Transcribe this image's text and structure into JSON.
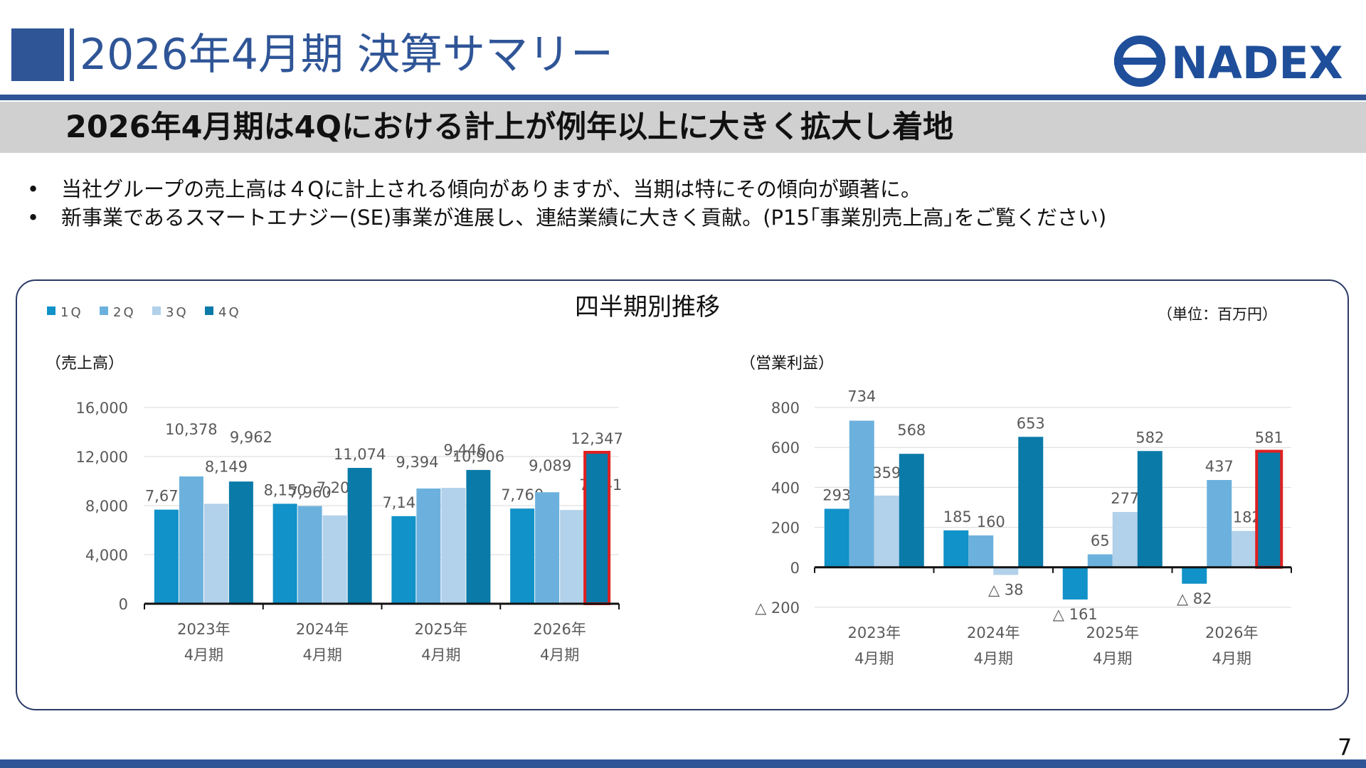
{
  "header": {
    "title": "2026年4月期 決算サマリー",
    "logo_text": "NADEX",
    "subheading": "2026年4月期は4Qにおける計上が例年以上に大きく拡大し着地"
  },
  "bullets": [
    "当社グループの売上高は４Qに計上される傾向がありますが、当期は特にその傾向が顕著に。",
    "新事業であるスマートエナジー(SE)事業が進展し、連結業績に大きく貢献。(P15｢事業別売上高｣をご覧ください)"
  ],
  "bullet_marker": "•",
  "panel": {
    "title": "四半期別推移",
    "unit": "（単位：百万円）"
  },
  "colors": {
    "brand": "#2f5597",
    "q1": "#1192c8",
    "q2": "#6cb1dd",
    "q3": "#b2d1ea",
    "q4": "#0a7aa8",
    "highlight": "#e02020"
  },
  "chart_data": [
    {
      "type": "bar",
      "title": "（売上高）",
      "categories": [
        [
          "2023年",
          "4月期"
        ],
        [
          "2024年",
          "4月期"
        ],
        [
          "2025年",
          "4月期"
        ],
        [
          "2026年",
          "4月期"
        ]
      ],
      "series": [
        {
          "name": "1Q",
          "values": [
            7672,
            8150,
            7142,
            7760
          ]
        },
        {
          "name": "2Q",
          "values": [
            10378,
            7960,
            9394,
            9089
          ]
        },
        {
          "name": "3Q",
          "values": [
            8149,
            7202,
            9446,
            7641
          ]
        },
        {
          "name": "4Q",
          "values": [
            9962,
            11074,
            10906,
            12347
          ]
        }
      ],
      "labels": [
        [
          "7,672",
          "10,378",
          "8,149",
          "9,962"
        ],
        [
          "8,150",
          "7,960",
          "7,202",
          "11,074"
        ],
        [
          "7,142",
          "9,394",
          "9,446",
          "10,906"
        ],
        [
          "7,760",
          "9,089",
          "7,641",
          "12,347"
        ]
      ],
      "yticks": [
        0,
        4000,
        8000,
        12000,
        16000
      ],
      "ytick_labels": [
        "0",
        "4,000",
        "8,000",
        "12,000",
        "16,000"
      ],
      "ylim": [
        0,
        16000
      ],
      "legend": "top-left",
      "grid": true,
      "highlight": {
        "category": 3,
        "series": 3
      }
    },
    {
      "type": "bar",
      "title": "（営業利益）",
      "categories": [
        [
          "2023年",
          "4月期"
        ],
        [
          "2024年",
          "4月期"
        ],
        [
          "2025年",
          "4月期"
        ],
        [
          "2026年",
          "4月期"
        ]
      ],
      "series": [
        {
          "name": "1Q",
          "values": [
            293,
            185,
            -161,
            -82
          ]
        },
        {
          "name": "2Q",
          "values": [
            734,
            160,
            65,
            437
          ]
        },
        {
          "name": "3Q",
          "values": [
            359,
            -38,
            277,
            182
          ]
        },
        {
          "name": "4Q",
          "values": [
            568,
            653,
            582,
            581
          ]
        }
      ],
      "labels": [
        [
          "293",
          "734",
          "359",
          "568"
        ],
        [
          "185",
          "160",
          "△ 38",
          "653"
        ],
        [
          "△ 161",
          "65",
          "277",
          "582"
        ],
        [
          "△ 82",
          "437",
          "182",
          "581"
        ]
      ],
      "yticks": [
        -200,
        0,
        200,
        400,
        600,
        800
      ],
      "ytick_labels": [
        "△ 200",
        "0",
        "200",
        "400",
        "600",
        "800"
      ],
      "ylim": [
        -200,
        800
      ],
      "grid": true,
      "highlight": {
        "category": 3,
        "series": 3
      }
    }
  ],
  "page_number": "7"
}
